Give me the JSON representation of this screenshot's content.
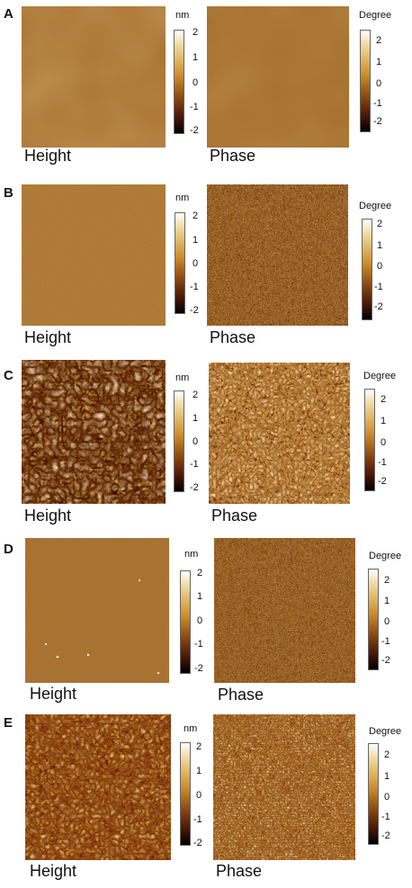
{
  "panels": [
    {
      "letter": "A",
      "height_caption": "Height",
      "phase_caption": "Phase",
      "height_unit": "nm",
      "phase_unit": "Degree",
      "ticks": [
        "2",
        "1",
        "0",
        "-1",
        "-2"
      ]
    },
    {
      "letter": "B",
      "height_caption": "Height",
      "phase_caption": "Phase",
      "height_unit": "nm",
      "phase_unit": "Degree",
      "ticks": [
        "2",
        "1",
        "0",
        "-1",
        "-2"
      ]
    },
    {
      "letter": "C",
      "height_caption": "Height",
      "phase_caption": "Phase",
      "height_unit": "nm",
      "phase_unit": "Degree",
      "ticks": [
        "2",
        "1",
        "0",
        "-1",
        "-2"
      ]
    },
    {
      "letter": "D",
      "height_caption": "Height",
      "phase_caption": "Phase",
      "height_unit": "nm",
      "phase_unit": "Degree",
      "ticks": [
        "2",
        "1",
        "0",
        "-1",
        "-2"
      ]
    },
    {
      "letter": "E",
      "height_caption": "Height",
      "phase_caption": "Phase",
      "height_unit": "nm",
      "phase_unit": "Degree",
      "ticks": [
        "2",
        "1",
        "0",
        "-1",
        "-2"
      ]
    }
  ]
}
